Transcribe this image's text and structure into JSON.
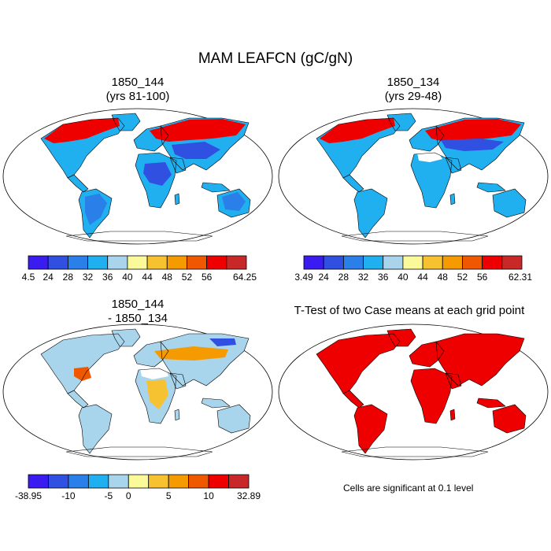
{
  "main_title": "MAM LEAFCN (gC/gN)",
  "panels": [
    {
      "title1": "1850_144",
      "title2": "(yrs 81-100)",
      "fill": "abs"
    },
    {
      "title1": "1850_134",
      "title2": "(yrs 29-48)",
      "fill": "abs"
    },
    {
      "title1": "1850_144",
      "title2": "- 1850_134",
      "fill": "diff"
    },
    {
      "title1": "T-Test of two Case means at each grid point",
      "title2": "",
      "fill": "sig"
    }
  ],
  "colorbars": [
    {
      "labels": [
        "4.5",
        "24",
        "28",
        "32",
        "36",
        "40",
        "44",
        "48",
        "52",
        "56",
        "64.25"
      ]
    },
    {
      "labels": [
        "3.49",
        "24",
        "28",
        "32",
        "36",
        "40",
        "44",
        "48",
        "52",
        "56",
        "62.31"
      ]
    },
    {
      "labels": [
        "-38.95",
        "-10",
        "-5",
        "0",
        "5",
        "10",
        "32.89"
      ]
    }
  ],
  "palettes": {
    "abs": [
      "#3a1cf0",
      "#2f50e0",
      "#2a7fe8",
      "#20b0f0",
      "#a8d4ec",
      "#fafa9a",
      "#f6c232",
      "#f59a00",
      "#f05800",
      "#ee0000",
      "#c82828"
    ],
    "diff": [
      "#3a1cf0",
      "#2f50e0",
      "#2a7fe8",
      "#20b0f0",
      "#a8d4ec",
      "#fafa9a",
      "#f6c232",
      "#f59a00",
      "#f05800",
      "#ee0000",
      "#c82828"
    ],
    "sig": "#ee0000"
  },
  "significance_note": "Cells are significant at 0.1 level"
}
